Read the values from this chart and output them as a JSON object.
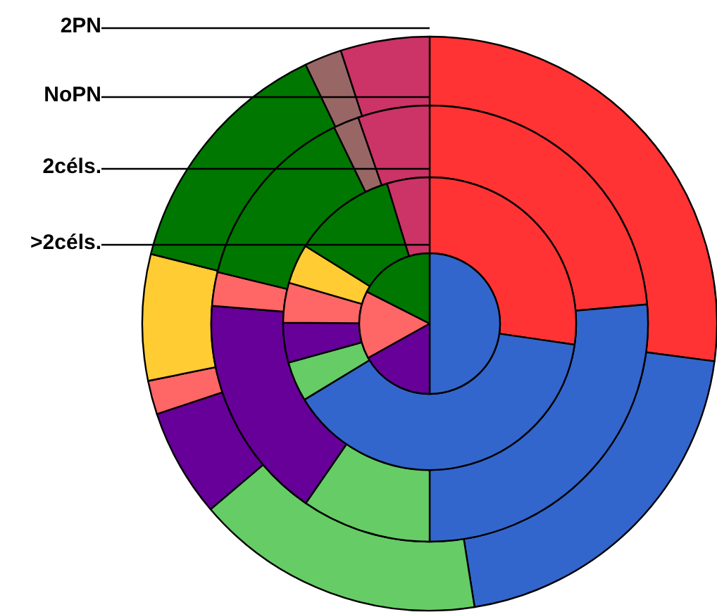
{
  "chart_data": {
    "type": "donut",
    "series": [
      {
        "name": "2PN",
        "values": [
          27.1,
          20.4,
          16.3,
          6.1,
          1.9,
          7.1,
          14.0,
          2.1,
          5.0
        ],
        "colors": [
          "#ff3333",
          "#3366cc",
          "#66cc66",
          "#660099",
          "#ff6666",
          "#ffcc33",
          "#007700",
          "#996666",
          "#cc3366"
        ]
      },
      {
        "name": "NoPN",
        "values": [
          23.6,
          26.4,
          9.6,
          16.7,
          2.5,
          14.0,
          1.9,
          5.3
        ],
        "colors": [
          "#ff3333",
          "#3366cc",
          "#66cc66",
          "#660099",
          "#ff6666",
          "#007700",
          "#996666",
          "#cc3366"
        ]
      },
      {
        "name": "2céls.",
        "values": [
          27.3,
          39.0,
          4.4,
          4.4,
          4.4,
          4.4,
          11.4,
          4.7
        ],
        "colors": [
          "#ff3333",
          "#3366cc",
          "#66cc66",
          "#660099",
          "#ff6666",
          "#ffcc33",
          "#007700",
          "#cc3366"
        ]
      },
      {
        "name": ">2céls.",
        "values": [
          50,
          16.9,
          15.6,
          17.5
        ],
        "colors": [
          "#3366cc",
          "#660099",
          "#ff6666",
          "#007700"
        ]
      }
    ]
  }
}
